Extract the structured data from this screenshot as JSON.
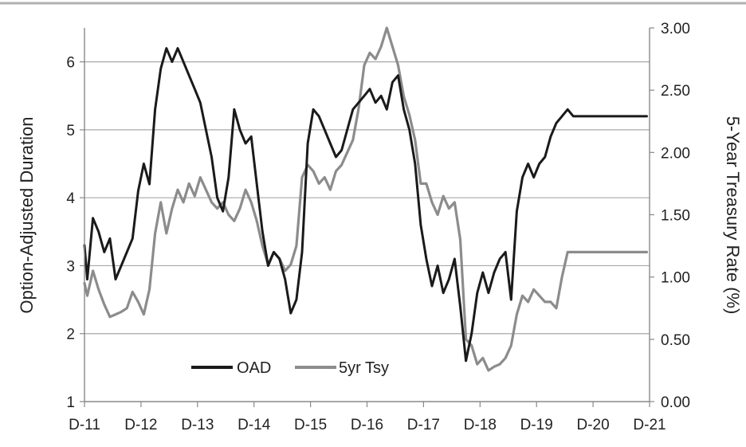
{
  "chart_data": {
    "type": "line",
    "title": "",
    "x_tick_labels": [
      "D-11",
      "D-12",
      "D-13",
      "D-14",
      "D-15",
      "D-16",
      "D-17",
      "D-18",
      "D-19",
      "D-20",
      "D-21"
    ],
    "y_left": {
      "label": "Option-Adjusted Duration",
      "ticks": [
        "1",
        "2",
        "3",
        "4",
        "5",
        "6"
      ],
      "ylim": [
        1,
        6.5
      ]
    },
    "y_right": {
      "label": "5-Year Treasury Rate (%)",
      "ticks": [
        "0.00",
        "0.50",
        "1.00",
        "1.50",
        "2.00",
        "2.50",
        "3.00"
      ],
      "ylim": [
        0,
        3
      ]
    },
    "grid": "horizontal",
    "legend_position": "bottom-left",
    "series": [
      {
        "name": "OAD",
        "axis": "left",
        "color": "#1a1a1a",
        "x": [
          0,
          0.05,
          0.15,
          0.25,
          0.35,
          0.45,
          0.55,
          0.65,
          0.75,
          0.85,
          0.95,
          1.05,
          1.15,
          1.25,
          1.35,
          1.45,
          1.55,
          1.65,
          1.75,
          1.85,
          1.95,
          2.05,
          2.15,
          2.25,
          2.35,
          2.45,
          2.55,
          2.65,
          2.75,
          2.85,
          2.95,
          3.05,
          3.15,
          3.25,
          3.35,
          3.45,
          3.55,
          3.65,
          3.75,
          3.85,
          3.95,
          4.05,
          4.15,
          4.25,
          4.35,
          4.45,
          4.55,
          4.65,
          4.75,
          4.85,
          4.95,
          5.05,
          5.15,
          5.25,
          5.35,
          5.45,
          5.55,
          5.65,
          5.75,
          5.85,
          5.95,
          6.05,
          6.15,
          6.25,
          6.35,
          6.45,
          6.55,
          6.65,
          6.75,
          6.85,
          6.95,
          7.05,
          7.15,
          7.25,
          7.35,
          7.45,
          7.55,
          7.65,
          7.75,
          7.85,
          7.95,
          8.05,
          8.15,
          8.25,
          8.35,
          8.45,
          8.55,
          8.65,
          8.75,
          8.85,
          8.95,
          9.05,
          9.15,
          9.25,
          9.35,
          9.45,
          9.55,
          9.65,
          9.75,
          9.85,
          9.95
        ],
        "values": [
          3.3,
          2.8,
          3.7,
          3.5,
          3.2,
          3.4,
          2.8,
          3.0,
          3.2,
          3.4,
          4.1,
          4.5,
          4.2,
          5.3,
          5.9,
          6.2,
          6.0,
          6.2,
          6.0,
          5.8,
          5.6,
          5.4,
          5.0,
          4.6,
          4.0,
          3.8,
          4.3,
          5.3,
          5.0,
          4.8,
          4.9,
          4.2,
          3.5,
          3.0,
          3.2,
          3.1,
          2.8,
          2.3,
          2.5,
          3.2,
          4.8,
          5.3,
          5.2,
          5.0,
          4.8,
          4.6,
          4.7,
          5.0,
          5.3,
          5.4,
          5.5,
          5.6,
          5.4,
          5.5,
          5.3,
          5.7,
          5.8,
          5.3,
          5.0,
          4.5,
          3.6,
          3.1,
          2.7,
          3.0,
          2.6,
          2.8,
          3.1,
          2.4,
          1.6,
          2.0,
          2.6,
          2.9,
          2.6,
          2.9,
          3.1,
          3.2,
          2.5,
          3.8,
          4.3,
          4.5,
          4.3,
          4.5,
          4.6,
          4.9,
          5.1,
          5.2,
          5.3,
          5.2,
          5.2,
          5.2,
          5.2,
          5.2,
          5.2,
          5.2,
          5.2,
          5.2,
          5.2,
          5.2,
          5.2,
          5.2,
          5.2
        ]
      },
      {
        "name": "5yr Tsy",
        "axis": "right",
        "color": "#8c8c8c",
        "x": [
          0,
          0.05,
          0.15,
          0.25,
          0.35,
          0.45,
          0.55,
          0.65,
          0.75,
          0.85,
          0.95,
          1.05,
          1.15,
          1.25,
          1.35,
          1.45,
          1.55,
          1.65,
          1.75,
          1.85,
          1.95,
          2.05,
          2.15,
          2.25,
          2.35,
          2.45,
          2.55,
          2.65,
          2.75,
          2.85,
          2.95,
          3.05,
          3.15,
          3.25,
          3.35,
          3.45,
          3.55,
          3.65,
          3.75,
          3.85,
          3.95,
          4.05,
          4.15,
          4.25,
          4.35,
          4.45,
          4.55,
          4.65,
          4.75,
          4.85,
          4.95,
          5.05,
          5.15,
          5.25,
          5.35,
          5.45,
          5.55,
          5.65,
          5.75,
          5.85,
          5.95,
          6.05,
          6.15,
          6.25,
          6.35,
          6.45,
          6.55,
          6.65,
          6.75,
          6.85,
          6.95,
          7.05,
          7.15,
          7.25,
          7.35,
          7.45,
          7.55,
          7.65,
          7.75,
          7.85,
          7.95,
          8.05,
          8.15,
          8.25,
          8.35,
          8.45,
          8.55,
          8.65,
          8.75,
          8.85,
          8.95,
          9.05,
          9.15,
          9.25,
          9.35,
          9.45,
          9.55,
          9.65,
          9.75,
          9.85,
          9.95
        ],
        "values": [
          0.95,
          0.85,
          1.05,
          0.9,
          0.78,
          0.68,
          0.7,
          0.72,
          0.75,
          0.88,
          0.8,
          0.7,
          0.9,
          1.35,
          1.6,
          1.35,
          1.55,
          1.7,
          1.6,
          1.75,
          1.65,
          1.8,
          1.7,
          1.6,
          1.55,
          1.6,
          1.5,
          1.45,
          1.55,
          1.7,
          1.6,
          1.45,
          1.25,
          1.1,
          1.2,
          1.15,
          1.05,
          1.1,
          1.25,
          1.8,
          1.9,
          1.85,
          1.75,
          1.8,
          1.7,
          1.85,
          1.9,
          2.0,
          2.1,
          2.35,
          2.7,
          2.8,
          2.75,
          2.85,
          3.0,
          2.85,
          2.7,
          2.45,
          2.3,
          2.1,
          1.75,
          1.75,
          1.6,
          1.5,
          1.65,
          1.55,
          1.6,
          1.3,
          0.5,
          0.45,
          0.3,
          0.35,
          0.25,
          0.28,
          0.3,
          0.35,
          0.45,
          0.7,
          0.85,
          0.8,
          0.9,
          0.85,
          0.8,
          0.8,
          0.75,
          1.0,
          1.2,
          1.2,
          1.2,
          1.2,
          1.2,
          1.2,
          1.2,
          1.2,
          1.2,
          1.2,
          1.2,
          1.2,
          1.2,
          1.2,
          1.2
        ]
      }
    ]
  }
}
